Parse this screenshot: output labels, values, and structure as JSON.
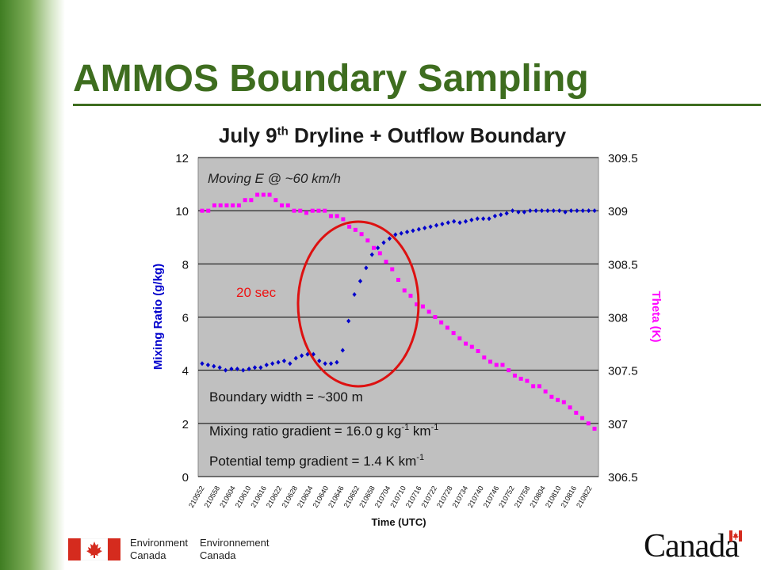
{
  "slide": {
    "title": "AMMOS Boundary Sampling",
    "accent_color": "#3e6d1f"
  },
  "footer": {
    "dept_en_line1": "Environment",
    "dept_en_line2": "Canada",
    "dept_fr_line1": "Environnement",
    "dept_fr_line2": "Canada",
    "wordmark": "Canada",
    "flag_color": "#d52b1e"
  },
  "chart_data": {
    "type": "scatter",
    "title_main": "July 9",
    "title_sup": "th",
    "title_rest": " Dryline + Outflow Boundary",
    "xlabel": "Time (UTC)",
    "ylabel_left": "Mixing Ratio (g/kg)",
    "ylabel_right": "Theta (K)",
    "ylim_left": [
      0,
      12
    ],
    "ylim_right": [
      306.5,
      309.5
    ],
    "yticks_left": [
      "0",
      "2",
      "4",
      "6",
      "8",
      "10",
      "12"
    ],
    "yticks_right": [
      "306.5",
      "307",
      "307.5",
      "308",
      "308.5",
      "309",
      "309.5"
    ],
    "x_ticklabels": [
      "210552",
      "210558",
      "210604",
      "210610",
      "210616",
      "210622",
      "210628",
      "210634",
      "210640",
      "210646",
      "210652",
      "210658",
      "210704",
      "210710",
      "210716",
      "210722",
      "210728",
      "210734",
      "210740",
      "210746",
      "210752",
      "210758",
      "210804",
      "210810",
      "210816",
      "210822"
    ],
    "plot_background": "#c0c0c0",
    "grid": true,
    "series": [
      {
        "name": "Mixing Ratio (g/kg)",
        "axis": "left",
        "color": "#0000cc",
        "marker": "diamond",
        "values": [
          4.25,
          4.2,
          4.15,
          4.1,
          4.0,
          4.05,
          4.05,
          4.0,
          4.05,
          4.1,
          4.1,
          4.2,
          4.25,
          4.3,
          4.35,
          4.25,
          4.45,
          4.55,
          4.6,
          4.6,
          4.35,
          4.25,
          4.25,
          4.3,
          4.75,
          5.85,
          6.85,
          7.35,
          7.85,
          8.35,
          8.6,
          8.8,
          8.95,
          9.1,
          9.15,
          9.2,
          9.25,
          9.3,
          9.35,
          9.4,
          9.45,
          9.5,
          9.55,
          9.6,
          9.55,
          9.6,
          9.65,
          9.7,
          9.7,
          9.7,
          9.8,
          9.85,
          9.9,
          10.0,
          9.95,
          9.95,
          10.0,
          10.0,
          10.0,
          10.0,
          10.0,
          10.0,
          9.95,
          10.0,
          10.0,
          10.0,
          10.0,
          10.0
        ]
      },
      {
        "name": "Theta (K)",
        "axis": "right",
        "color": "#ff00ff",
        "marker": "square",
        "values": [
          309.0,
          309.0,
          309.05,
          309.05,
          309.05,
          309.05,
          309.05,
          309.1,
          309.1,
          309.15,
          309.15,
          309.15,
          309.1,
          309.05,
          309.05,
          309.0,
          309.0,
          308.98,
          309.0,
          309.0,
          309.0,
          308.95,
          308.95,
          308.92,
          308.85,
          308.82,
          308.78,
          308.72,
          308.65,
          308.6,
          308.52,
          308.45,
          308.35,
          308.25,
          308.2,
          308.12,
          308.1,
          308.05,
          308.0,
          307.95,
          307.9,
          307.85,
          307.8,
          307.75,
          307.72,
          307.68,
          307.62,
          307.58,
          307.55,
          307.55,
          307.5,
          307.45,
          307.42,
          307.4,
          307.35,
          307.35,
          307.3,
          307.25,
          307.22,
          307.2,
          307.15,
          307.1,
          307.05,
          307.0,
          306.95
        ]
      }
    ],
    "annotations": {
      "moving": "Moving E @ ~60 km/h",
      "seconds": "20 sec",
      "width": "Boundary width = ~300 m",
      "mr_gradient_pre": "Mixing ratio gradient = 16.0 g kg",
      "mr_gradient_sup1": "-1",
      "mr_gradient_mid": " km",
      "mr_gradient_sup2": "-1",
      "pt_gradient_pre": "Potential temp gradient = 1.4 K km",
      "pt_gradient_sup": "-1"
    },
    "ellipse_color": "#dd1111"
  }
}
